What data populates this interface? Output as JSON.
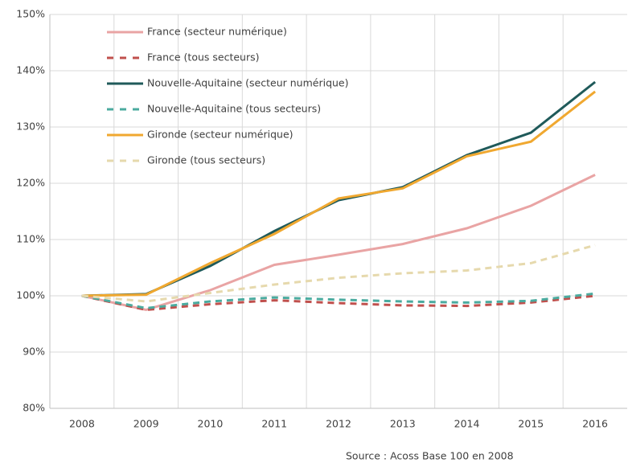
{
  "chart_data": {
    "type": "line",
    "categories": [
      "2008",
      "2009",
      "2010",
      "2011",
      "2012",
      "2013",
      "2014",
      "2015",
      "2016"
    ],
    "series": [
      {
        "name": "France (secteur numérique)",
        "color": "#e9a4a4",
        "dashed": false,
        "values": [
          100,
          97.5,
          101,
          105.5,
          107.3,
          109.2,
          112,
          116,
          121.5
        ]
      },
      {
        "name": "France (tous secteurs)",
        "color": "#c0504d",
        "dashed": true,
        "values": [
          100,
          97.5,
          98.5,
          99.2,
          98.7,
          98.3,
          98.2,
          98.8,
          100
        ]
      },
      {
        "name": "Nouvelle-Aquitaine (secteur numérique)",
        "color": "#1f5a5a",
        "dashed": false,
        "values": [
          100,
          100.3,
          105.3,
          111.5,
          117,
          119.3,
          125,
          129,
          138
        ]
      },
      {
        "name": "Nouvelle-Aquitaine (tous secteurs)",
        "color": "#4bab9f",
        "dashed": true,
        "values": [
          100,
          97.8,
          99,
          99.7,
          99.3,
          99,
          98.8,
          99.1,
          100.4
        ]
      },
      {
        "name": "Gironde (secteur numérique)",
        "color": "#f0a830",
        "dashed": false,
        "values": [
          100,
          100.2,
          105.8,
          111,
          117.3,
          119.1,
          124.8,
          127.4,
          136.3
        ]
      },
      {
        "name": "Gironde (tous secteurs)",
        "color": "#e6d9ad",
        "dashed": true,
        "values": [
          100,
          99,
          100.5,
          102,
          103.2,
          104,
          104.5,
          105.8,
          109
        ]
      }
    ],
    "ylim": [
      80,
      150
    ],
    "yticks": [
      {
        "value": 80,
        "label": "80%"
      },
      {
        "value": 90,
        "label": "90%"
      },
      {
        "value": 100,
        "label": "100%"
      },
      {
        "value": 110,
        "label": "110%"
      },
      {
        "value": 120,
        "label": "120%"
      },
      {
        "value": 130,
        "label": "130%"
      },
      {
        "value": 140,
        "label": "140%"
      },
      {
        "value": 150,
        "label": "150%"
      }
    ],
    "grid": true,
    "legend": "upper left",
    "source": "Source : Acoss Base 100 en 2008"
  }
}
